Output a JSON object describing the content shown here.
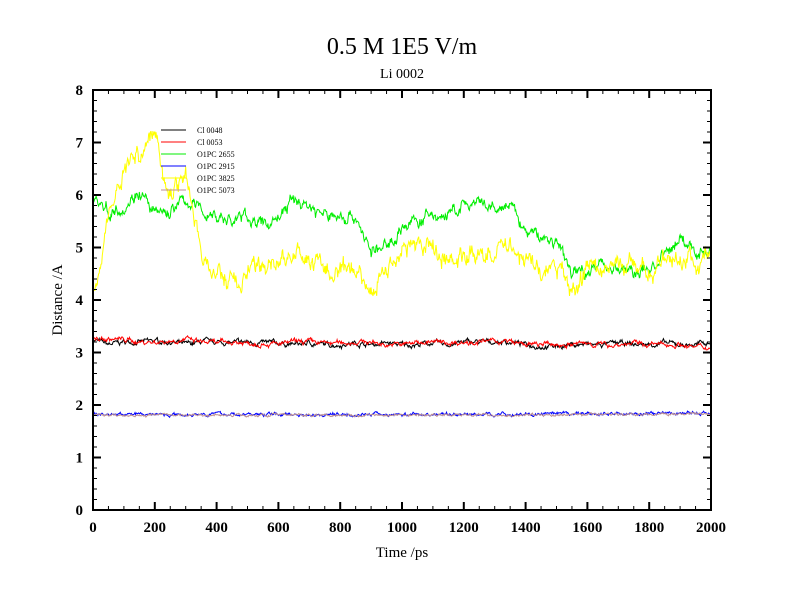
{
  "chart_data": {
    "type": "line",
    "title": "0.5 M 1E5 V/m",
    "subtitle": "Li 0002",
    "xlabel": "Time /ps",
    "ylabel": "Distance /A",
    "xlim": [
      0,
      2000
    ],
    "ylim": [
      0,
      8
    ],
    "xticks": [
      0,
      200,
      400,
      600,
      800,
      1000,
      1200,
      1400,
      1600,
      1800,
      2000
    ],
    "yticks": [
      0,
      1,
      2,
      3,
      4,
      5,
      6,
      7,
      8
    ],
    "legend_position": "top-left",
    "x": [
      0,
      50,
      100,
      150,
      200,
      250,
      300,
      350,
      400,
      450,
      500,
      550,
      600,
      650,
      700,
      750,
      800,
      850,
      900,
      950,
      1000,
      1050,
      1100,
      1150,
      1200,
      1250,
      1300,
      1350,
      1400,
      1450,
      1500,
      1550,
      1600,
      1650,
      1700,
      1750,
      1800,
      1850,
      1900,
      1950,
      2000
    ],
    "series": [
      {
        "name": "Cl 0048",
        "color": "#000000",
        "noise": 0.03,
        "values": [
          3.25,
          3.15,
          3.2,
          3.2,
          3.22,
          3.2,
          3.15,
          3.2,
          3.2,
          3.18,
          3.2,
          3.18,
          3.18,
          3.15,
          3.18,
          3.15,
          3.15,
          3.18,
          3.15,
          3.18,
          3.15,
          3.15,
          3.18,
          3.15,
          3.2,
          3.2,
          3.2,
          3.2,
          3.15,
          3.12,
          3.12,
          3.15,
          3.15,
          3.15,
          3.18,
          3.15,
          3.15,
          3.18,
          3.15,
          3.15,
          3.2
        ]
      },
      {
        "name": "Cl 0053",
        "color": "#ff0000",
        "noise": 0.03,
        "values": [
          3.25,
          3.25,
          3.25,
          3.2,
          3.2,
          3.22,
          3.25,
          3.2,
          3.18,
          3.2,
          3.18,
          3.18,
          3.15,
          3.2,
          3.2,
          3.18,
          3.18,
          3.2,
          3.2,
          3.15,
          3.15,
          3.2,
          3.2,
          3.18,
          3.2,
          3.2,
          3.22,
          3.2,
          3.15,
          3.15,
          3.15,
          3.15,
          3.18,
          3.15,
          3.15,
          3.18,
          3.15,
          3.15,
          3.15,
          3.1,
          3.1
        ]
      },
      {
        "name": "O1PC 2655",
        "color": "#00ee00",
        "noise": 0.08,
        "values": [
          6.0,
          5.7,
          5.8,
          6.1,
          5.6,
          5.7,
          5.9,
          5.7,
          5.6,
          5.5,
          5.6,
          5.4,
          5.6,
          5.9,
          5.8,
          5.6,
          5.6,
          5.6,
          4.9,
          5.0,
          5.4,
          5.5,
          5.6,
          5.6,
          5.8,
          5.8,
          5.7,
          5.8,
          5.3,
          5.2,
          5.1,
          4.5,
          4.6,
          4.7,
          4.6,
          4.5,
          4.6,
          4.8,
          5.2,
          4.9,
          5.0
        ]
      },
      {
        "name": "O1PC 2915",
        "color": "#0000ff",
        "noise": 0.02,
        "values": [
          1.82,
          1.82,
          1.83,
          1.82,
          1.83,
          1.82,
          1.82,
          1.84,
          1.83,
          1.82,
          1.82,
          1.82,
          1.83,
          1.82,
          1.82,
          1.82,
          1.83,
          1.82,
          1.82,
          1.82,
          1.82,
          1.82,
          1.82,
          1.83,
          1.82,
          1.82,
          1.83,
          1.82,
          1.82,
          1.82,
          1.82,
          1.83,
          1.84,
          1.83,
          1.84,
          1.84,
          1.83,
          1.83,
          1.85,
          1.84,
          1.84
        ]
      },
      {
        "name": "O1PC 3825",
        "color": "#ffff00",
        "noise": 0.12,
        "values": [
          4.2,
          5.6,
          6.5,
          6.8,
          7.2,
          6.0,
          6.5,
          4.8,
          4.5,
          4.3,
          4.5,
          4.6,
          4.8,
          4.8,
          4.8,
          4.6,
          4.4,
          4.6,
          4.2,
          4.6,
          5.0,
          5.0,
          5.0,
          4.8,
          4.8,
          4.9,
          4.9,
          5.1,
          4.8,
          4.5,
          4.6,
          4.2,
          4.6,
          4.6,
          4.7,
          4.6,
          4.6,
          4.7,
          4.8,
          4.7,
          4.8
        ]
      },
      {
        "name": "O1PC 5073",
        "color": "#bc8f8f",
        "noise": 0.015,
        "values": [
          1.81,
          1.81,
          1.81,
          1.81,
          1.81,
          1.81,
          1.81,
          1.81,
          1.81,
          1.81,
          1.81,
          1.81,
          1.81,
          1.81,
          1.81,
          1.81,
          1.81,
          1.81,
          1.81,
          1.81,
          1.81,
          1.81,
          1.81,
          1.81,
          1.81,
          1.81,
          1.81,
          1.81,
          1.81,
          1.81,
          1.81,
          1.81,
          1.82,
          1.82,
          1.82,
          1.82,
          1.82,
          1.82,
          1.83,
          1.83,
          1.83
        ]
      }
    ]
  }
}
